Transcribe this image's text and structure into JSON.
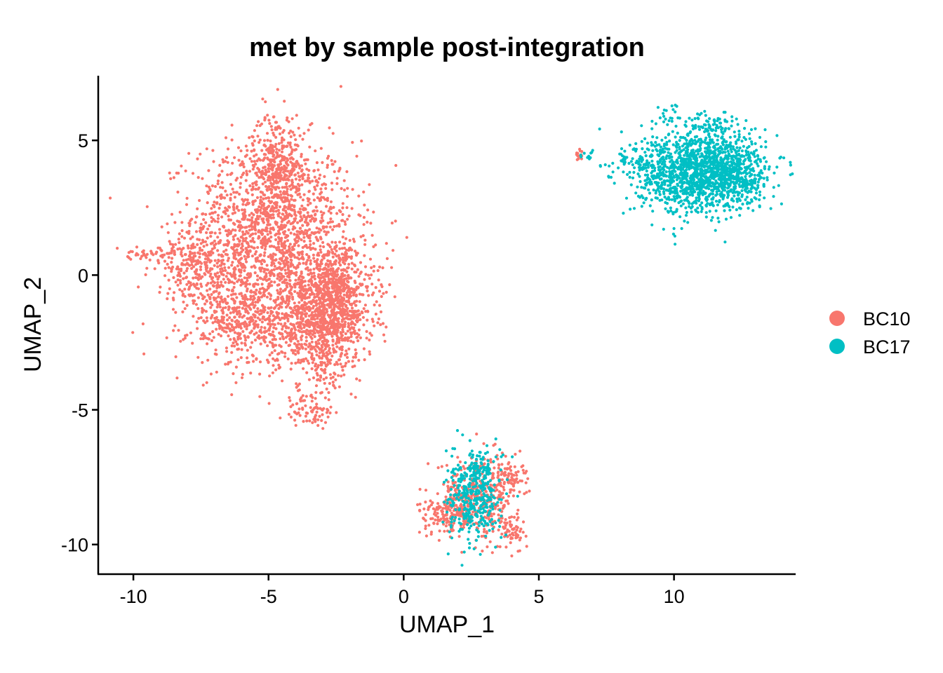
{
  "chart_data": {
    "type": "scatter",
    "title": "met by sample post-integration",
    "xlabel": "UMAP_1",
    "ylabel": "UMAP_2",
    "xlim": [
      -11.3,
      14.5
    ],
    "ylim": [
      -11.1,
      7.4
    ],
    "xticks": [
      -10,
      -5,
      0,
      5,
      10
    ],
    "yticks": [
      -10,
      -5,
      0,
      5
    ],
    "xtick_labels": [
      "-10",
      "-5",
      "0",
      "5",
      "10"
    ],
    "ytick_labels": [
      "-10",
      "-5",
      "0",
      "5"
    ],
    "grid": false,
    "legend_position": "right",
    "series": [
      {
        "name": "BC10",
        "color": "#F8766D",
        "clusters": [
          {
            "cx": -4.8,
            "cy": 2.2,
            "sx": 1.5,
            "sy": 1.4,
            "n": 1100
          },
          {
            "cx": -5.2,
            "cy": 0.4,
            "sx": 1.5,
            "sy": 1.2,
            "n": 500
          },
          {
            "cx": -4.7,
            "cy": 4.3,
            "sx": 0.45,
            "sy": 0.9,
            "n": 260
          },
          {
            "cx": -2.6,
            "cy": -1.0,
            "sx": 0.75,
            "sy": 1.1,
            "n": 950
          },
          {
            "cx": -3.6,
            "cy": -1.8,
            "sx": 1.1,
            "sy": 0.8,
            "n": 450
          },
          {
            "cx": -6.0,
            "cy": -1.6,
            "sx": 1.0,
            "sy": 0.9,
            "n": 450
          },
          {
            "cx": -7.7,
            "cy": 0.3,
            "sx": 0.8,
            "sy": 0.6,
            "n": 200
          },
          {
            "cx": -9.5,
            "cy": 0.75,
            "sx": 0.6,
            "sy": 0.12,
            "n": 40
          },
          {
            "cx": -2.9,
            "cy": -3.4,
            "sx": 0.3,
            "sy": 0.6,
            "n": 80
          },
          {
            "cx": -3.4,
            "cy": -5.1,
            "sx": 0.45,
            "sy": 0.3,
            "n": 60
          },
          {
            "cx": -3.9,
            "cy": -4.6,
            "sx": 0.2,
            "sy": 0.3,
            "n": 15
          },
          {
            "cx": 6.55,
            "cy": 4.45,
            "sx": 0.12,
            "sy": 0.12,
            "n": 14
          },
          {
            "cx": 2.8,
            "cy": -8.2,
            "sx": 0.75,
            "sy": 0.75,
            "n": 400
          },
          {
            "cx": 1.5,
            "cy": -8.9,
            "sx": 0.45,
            "sy": 0.35,
            "n": 120
          },
          {
            "cx": 4.0,
            "cy": -9.5,
            "sx": 0.25,
            "sy": 0.25,
            "n": 50
          },
          {
            "cx": 3.9,
            "cy": -7.5,
            "sx": 0.3,
            "sy": 0.35,
            "n": 60
          }
        ]
      },
      {
        "name": "BC17",
        "color": "#00BFC4",
        "clusters": [
          {
            "cx": 10.8,
            "cy": 3.8,
            "sx": 1.1,
            "sy": 0.75,
            "n": 1300
          },
          {
            "cx": 12.4,
            "cy": 3.8,
            "sx": 0.6,
            "sy": 0.55,
            "n": 300
          },
          {
            "cx": 11.3,
            "cy": 5.5,
            "sx": 0.5,
            "sy": 0.3,
            "n": 90
          },
          {
            "cx": 9.8,
            "cy": 6.0,
            "sx": 0.2,
            "sy": 0.3,
            "n": 20
          },
          {
            "cx": 8.6,
            "cy": 4.2,
            "sx": 0.5,
            "sy": 0.15,
            "n": 40
          },
          {
            "cx": 6.8,
            "cy": 4.45,
            "sx": 0.15,
            "sy": 0.1,
            "n": 10
          },
          {
            "cx": 2.6,
            "cy": -8.3,
            "sx": 0.5,
            "sy": 0.8,
            "n": 380
          },
          {
            "cx": 2.9,
            "cy": -7.0,
            "sx": 0.25,
            "sy": 0.3,
            "n": 40
          }
        ]
      }
    ]
  }
}
